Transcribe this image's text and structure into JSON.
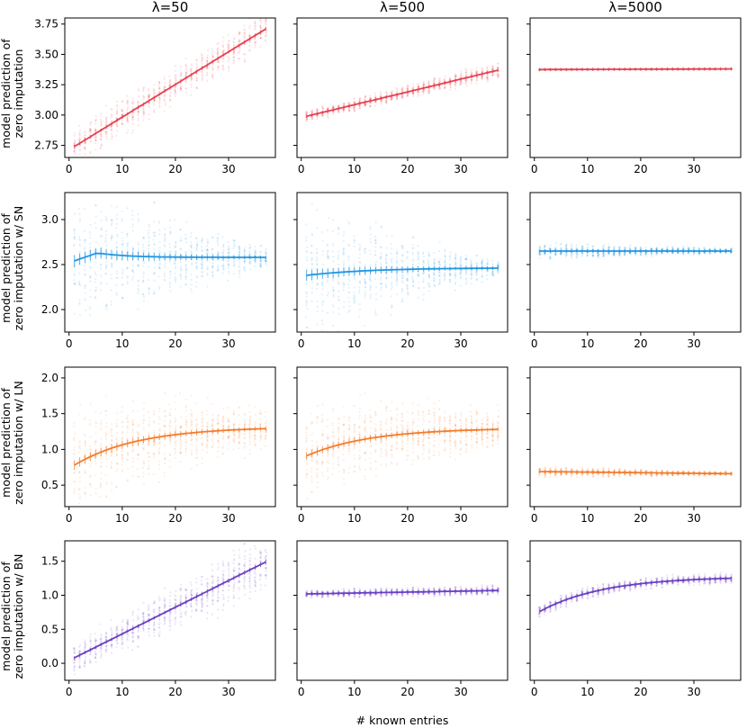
{
  "chart_data": {
    "type": "line",
    "columns": [
      "λ=50",
      "λ=500",
      "λ=5000"
    ],
    "rows": [
      {
        "ylabel": [
          "model prediction of",
          "zero imputation"
        ],
        "color": "#e8414f",
        "ylim": [
          2.65,
          3.8
        ],
        "yticks": [
          2.75,
          3.0,
          3.25,
          3.5,
          3.75
        ],
        "ytick_labels": [
          "2.75",
          "3.00",
          "3.25",
          "3.50",
          "3.75"
        ]
      },
      {
        "ylabel": [
          "model prediction of",
          "zero imputation w/ SN"
        ],
        "color": "#2196e0",
        "ylim": [
          1.75,
          3.3
        ],
        "yticks": [
          2.0,
          2.5,
          3.0
        ],
        "ytick_labels": [
          "2.0",
          "2.5",
          "3.0"
        ]
      },
      {
        "ylabel": [
          "model prediction of",
          "zero imputation w/ LN"
        ],
        "color": "#f47b2a",
        "ylim": [
          0.2,
          2.15
        ],
        "yticks": [
          0.5,
          1.0,
          1.5,
          2.0
        ],
        "ytick_labels": [
          "0.5",
          "1.0",
          "1.5",
          "2.0"
        ]
      },
      {
        "ylabel": [
          "model prediction of",
          "zero imputation w/ BN"
        ],
        "color": "#6a3fc2",
        "ylim": [
          -0.25,
          1.8
        ],
        "yticks": [
          0.0,
          0.5,
          1.0,
          1.5
        ],
        "ytick_labels": [
          "0.0",
          "0.5",
          "1.0",
          "1.5"
        ]
      }
    ],
    "xlim": [
      -0.8,
      38.8
    ],
    "xticks": [
      0,
      10,
      20,
      30
    ],
    "xtick_labels": [
      "0",
      "10",
      "20",
      "30"
    ],
    "xlabel": "# known entries",
    "series": [
      [
        {
          "x": [
            1,
            37
          ],
          "start": 2.74,
          "end": 3.71,
          "shape": "linear",
          "spread_start": 0.1,
          "spread_end": 0.1
        },
        {
          "x": [
            1,
            37
          ],
          "start": 2.99,
          "end": 3.37,
          "shape": "linear",
          "spread_start": 0.03,
          "spread_end": 0.05
        },
        {
          "x": [
            1,
            37
          ],
          "start": 3.375,
          "end": 3.38,
          "shape": "linear",
          "spread_start": 0.003,
          "spread_end": 0.003
        }
      ],
      [
        {
          "x": [
            1,
            37
          ],
          "start": 2.54,
          "end": 2.58,
          "shape": "bump",
          "peak": 2.63,
          "spread_start": 0.55,
          "spread_end": 0.08
        },
        {
          "x": [
            1,
            37
          ],
          "start": 2.38,
          "end": 2.46,
          "shape": "saturate",
          "spread_start": 0.5,
          "spread_end": 0.06
        },
        {
          "x": [
            1,
            37
          ],
          "start": 2.65,
          "end": 2.65,
          "shape": "linear",
          "spread_start": 0.06,
          "spread_end": 0.02
        }
      ],
      [
        {
          "x": [
            1,
            37
          ],
          "start": 0.78,
          "end": 1.29,
          "shape": "saturate",
          "spread_start": 0.55,
          "spread_end": 0.2
        },
        {
          "x": [
            1,
            37
          ],
          "start": 0.91,
          "end": 1.28,
          "shape": "saturate",
          "spread_start": 0.45,
          "spread_end": 0.2
        },
        {
          "x": [
            1,
            37
          ],
          "start": 0.69,
          "end": 0.66,
          "shape": "linear",
          "spread_start": 0.05,
          "spread_end": 0.02
        }
      ],
      [
        {
          "x": [
            1,
            37
          ],
          "start": 0.08,
          "end": 1.49,
          "shape": "linear",
          "spread_start": 0.15,
          "spread_end": 0.3
        },
        {
          "x": [
            1,
            37
          ],
          "start": 1.02,
          "end": 1.07,
          "shape": "linear",
          "spread_start": 0.04,
          "spread_end": 0.05
        },
        {
          "x": [
            1,
            37
          ],
          "start": 0.76,
          "end": 1.25,
          "shape": "saturate",
          "spread_start": 0.07,
          "spread_end": 0.05
        }
      ]
    ]
  }
}
